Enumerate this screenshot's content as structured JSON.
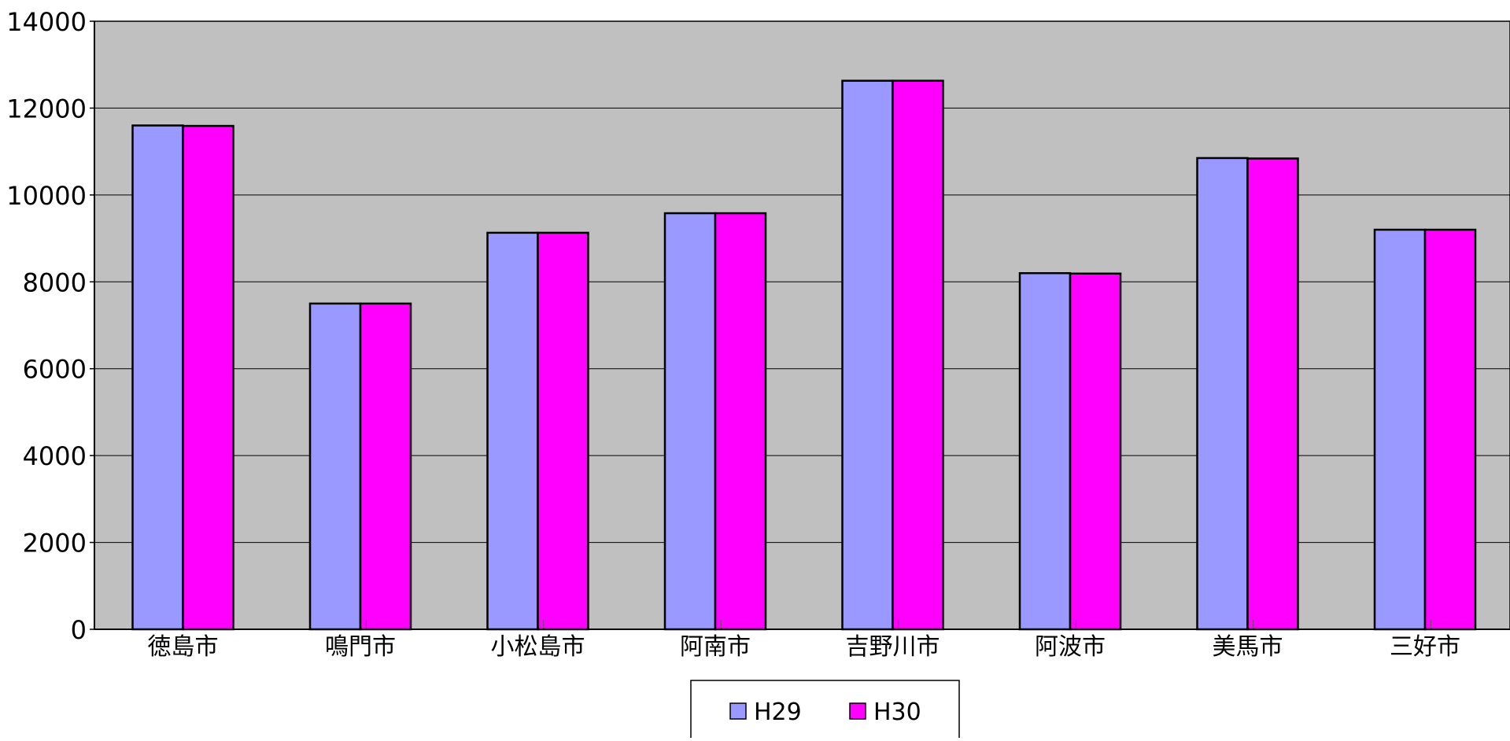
{
  "chart_data": {
    "type": "bar",
    "categories": [
      "徳島市",
      "鳴門市",
      "小松島市",
      "阿南市",
      "吉野川市",
      "阿波市",
      "美馬市",
      "三好市"
    ],
    "series": [
      {
        "name": "H29",
        "color": "#9999ff",
        "values": [
          11600,
          7500,
          9130,
          9580,
          12630,
          8200,
          10850,
          9200
        ]
      },
      {
        "name": "H30",
        "color": "#ff00ff",
        "values": [
          11590,
          7500,
          9130,
          9580,
          12630,
          8190,
          10840,
          9200
        ]
      }
    ],
    "ylim": [
      0,
      14000
    ],
    "yticks": [
      0,
      2000,
      4000,
      6000,
      8000,
      10000,
      12000,
      14000
    ],
    "grid": true,
    "plot_background": "#c0c0c0",
    "legend": "bottom-center"
  }
}
